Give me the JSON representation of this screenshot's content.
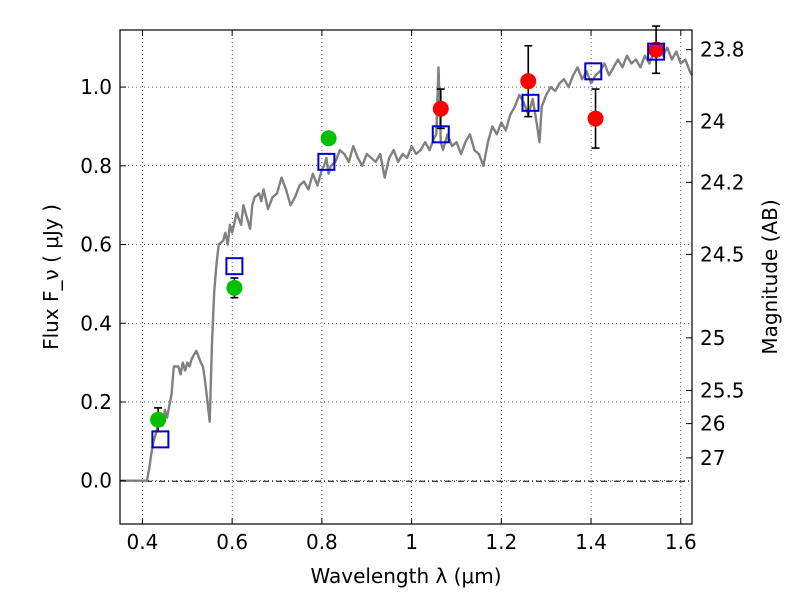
{
  "chart_data": {
    "type": "scatter",
    "xlabel": "Wavelength  λ (μm)",
    "ylabel": "Flux  F_ν  ( μJy )",
    "ylabel_right": "Magnitude (AB)",
    "xlim": [
      0.35,
      1.625
    ],
    "ylim": [
      -0.11,
      1.145
    ],
    "grid": true,
    "x_ticks": [
      0.4,
      0.6,
      0.8,
      1.0,
      1.2,
      1.4,
      1.6
    ],
    "x_tick_labels": [
      "0.4",
      "0.6",
      "0.8",
      "1",
      "1.2",
      "1.4",
      "1.6"
    ],
    "y_ticks": [
      0.0,
      0.2,
      0.4,
      0.6,
      0.8,
      1.0
    ],
    "y_tick_labels": [
      "0.0",
      "0.2",
      "0.4",
      "0.6",
      "0.8",
      "1.0"
    ],
    "right_ticks": [
      {
        "label": "23.8",
        "flux": 1.095
      },
      {
        "label": "24",
        "flux": 0.912
      },
      {
        "label": "24.2",
        "flux": 0.758
      },
      {
        "label": "24.5",
        "flux": 0.575
      },
      {
        "label": "25",
        "flux": 0.363
      },
      {
        "label": "25.5",
        "flux": 0.229
      },
      {
        "label": "26",
        "flux": 0.145
      },
      {
        "label": "27",
        "flux": 0.058
      }
    ],
    "colors": {
      "spectrum": "#808080",
      "green": "#00c000",
      "red": "#ff0000",
      "square": "#0000cc",
      "errorbar": "#000000"
    },
    "series": [
      {
        "marker": "line",
        "x": [
          0.35,
          0.39,
          0.41,
          0.415,
          0.42,
          0.425,
          0.43,
          0.435,
          0.44,
          0.445,
          0.45,
          0.455,
          0.46,
          0.465,
          0.47,
          0.48,
          0.485,
          0.49,
          0.495,
          0.5,
          0.505,
          0.51,
          0.515,
          0.52,
          0.53,
          0.535,
          0.54,
          0.545,
          0.55,
          0.555,
          0.56,
          0.565,
          0.57,
          0.58,
          0.585,
          0.59,
          0.595,
          0.6,
          0.61,
          0.62,
          0.625,
          0.63,
          0.64,
          0.645,
          0.65,
          0.66,
          0.665,
          0.67,
          0.68,
          0.69,
          0.7,
          0.71,
          0.72,
          0.73,
          0.74,
          0.75,
          0.76,
          0.77,
          0.78,
          0.79,
          0.8,
          0.805,
          0.81,
          0.815,
          0.82,
          0.83,
          0.84,
          0.85,
          0.86,
          0.87,
          0.88,
          0.89,
          0.9,
          0.91,
          0.92,
          0.93,
          0.94,
          0.95,
          0.96,
          0.97,
          0.98,
          0.99,
          1.0,
          1.01,
          1.02,
          1.03,
          1.04,
          1.05,
          1.055,
          1.06,
          1.065,
          1.07,
          1.08,
          1.09,
          1.1,
          1.11,
          1.12,
          1.13,
          1.14,
          1.15,
          1.16,
          1.17,
          1.18,
          1.19,
          1.2,
          1.21,
          1.22,
          1.23,
          1.24,
          1.25,
          1.26,
          1.27,
          1.28,
          1.285,
          1.29,
          1.3,
          1.31,
          1.32,
          1.33,
          1.34,
          1.35,
          1.36,
          1.37,
          1.38,
          1.39,
          1.4,
          1.41,
          1.42,
          1.43,
          1.44,
          1.45,
          1.46,
          1.47,
          1.48,
          1.49,
          1.5,
          1.51,
          1.52,
          1.53,
          1.54,
          1.55,
          1.56,
          1.57,
          1.58,
          1.59,
          1.6,
          1.61,
          1.62,
          1.625
        ],
        "y": [
          0.0,
          0.0,
          0.0,
          0.03,
          0.07,
          0.1,
          0.12,
          0.14,
          0.17,
          0.14,
          0.18,
          0.16,
          0.19,
          0.22,
          0.29,
          0.29,
          0.27,
          0.3,
          0.28,
          0.3,
          0.29,
          0.31,
          0.32,
          0.33,
          0.3,
          0.29,
          0.25,
          0.2,
          0.15,
          0.35,
          0.48,
          0.55,
          0.6,
          0.61,
          0.63,
          0.6,
          0.65,
          0.63,
          0.68,
          0.65,
          0.7,
          0.68,
          0.64,
          0.7,
          0.72,
          0.73,
          0.71,
          0.74,
          0.69,
          0.72,
          0.73,
          0.77,
          0.74,
          0.7,
          0.72,
          0.75,
          0.76,
          0.74,
          0.78,
          0.75,
          0.79,
          0.8,
          0.82,
          0.78,
          0.8,
          0.81,
          0.84,
          0.83,
          0.81,
          0.85,
          0.82,
          0.8,
          0.83,
          0.82,
          0.81,
          0.83,
          0.77,
          0.82,
          0.84,
          0.81,
          0.83,
          0.82,
          0.85,
          0.83,
          0.84,
          0.86,
          0.84,
          0.87,
          0.88,
          1.05,
          0.86,
          0.84,
          0.88,
          0.85,
          0.86,
          0.83,
          0.86,
          0.88,
          0.84,
          0.83,
          0.8,
          0.86,
          0.9,
          0.88,
          0.91,
          0.89,
          0.93,
          0.95,
          0.98,
          0.96,
          0.93,
          0.97,
          0.9,
          0.86,
          0.95,
          0.98,
          1.0,
          0.99,
          1.01,
          1.02,
          1.0,
          1.03,
          1.05,
          1.02,
          1.04,
          1.01,
          1.03,
          1.04,
          1.06,
          1.03,
          1.05,
          1.07,
          1.05,
          1.08,
          1.06,
          1.07,
          1.05,
          1.08,
          1.06,
          1.09,
          1.1,
          1.08,
          1.1,
          1.07,
          1.09,
          1.06,
          1.07,
          1.04,
          1.03
        ]
      },
      {
        "marker": "circle",
        "color": "#00c000",
        "x": [
          0.435,
          0.605,
          0.815
        ],
        "y": [
          0.155,
          0.49,
          0.87
        ],
        "yerr": [
          0.03,
          0.025,
          0.0
        ]
      },
      {
        "marker": "circle",
        "color": "#ff0000",
        "x": [
          1.065,
          1.26,
          1.41,
          1.545
        ],
        "y": [
          0.945,
          1.015,
          0.92,
          1.095
        ],
        "yerr": [
          0.05,
          0.09,
          0.075,
          0.06
        ]
      },
      {
        "marker": "open-square",
        "color": "#0000cc",
        "x": [
          0.44,
          0.605,
          0.81,
          1.065,
          1.265,
          1.405,
          1.545
        ],
        "y": [
          0.105,
          0.545,
          0.81,
          0.88,
          0.96,
          1.04,
          1.09
        ]
      }
    ]
  }
}
